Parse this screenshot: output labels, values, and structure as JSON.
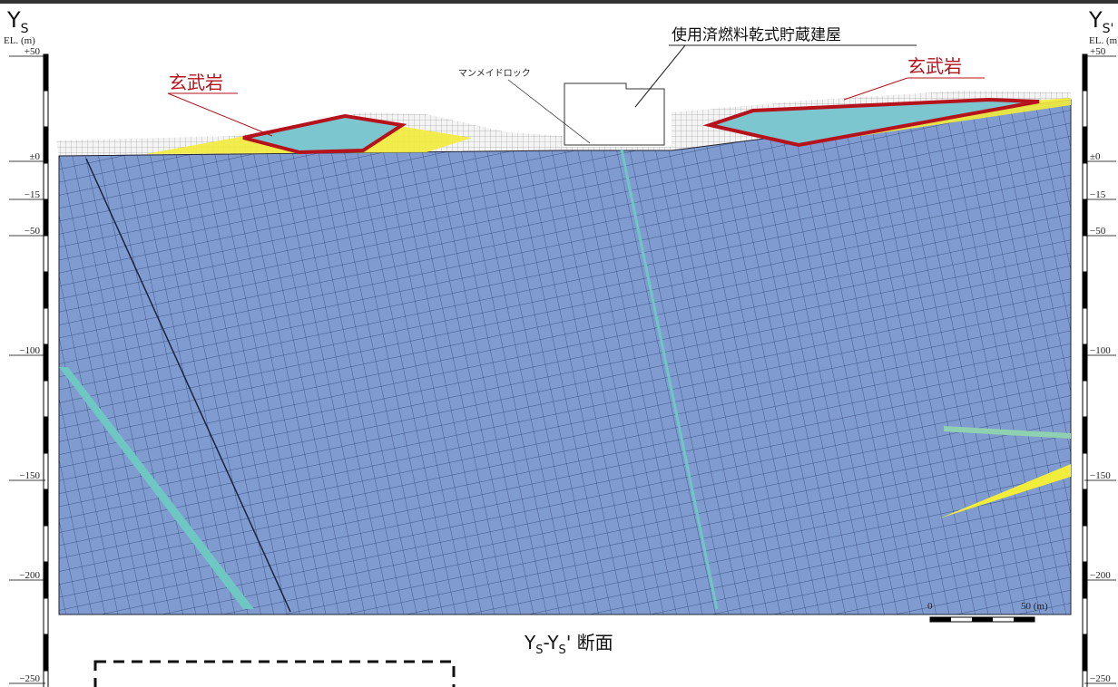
{
  "left_axis": {
    "name": "Y",
    "sub": "S",
    "unit": "EL. (m)",
    "ticks": [
      "+50",
      "±0",
      "−15",
      "−50",
      "−100",
      "−150",
      "−200",
      "−250"
    ]
  },
  "right_axis": {
    "name": "Y",
    "sub": "S'",
    "unit": "EL. (m)",
    "ticks": [
      "+50",
      "±0",
      "−15",
      "−50",
      "−100",
      "−150",
      "−200",
      "−250"
    ]
  },
  "labels": {
    "building": "使用済燃料乾式貯蔵建屋",
    "basalt_left": "玄武岩",
    "basalt_right": "玄武岩",
    "manmade_rock": "マンメイドロック"
  },
  "caption": {
    "a": "Y",
    "a_sub": "S",
    "b": "-Y",
    "b_sub": "S",
    "c": "' 断面"
  },
  "scale": {
    "start": "0",
    "end": "50 (m)"
  }
}
